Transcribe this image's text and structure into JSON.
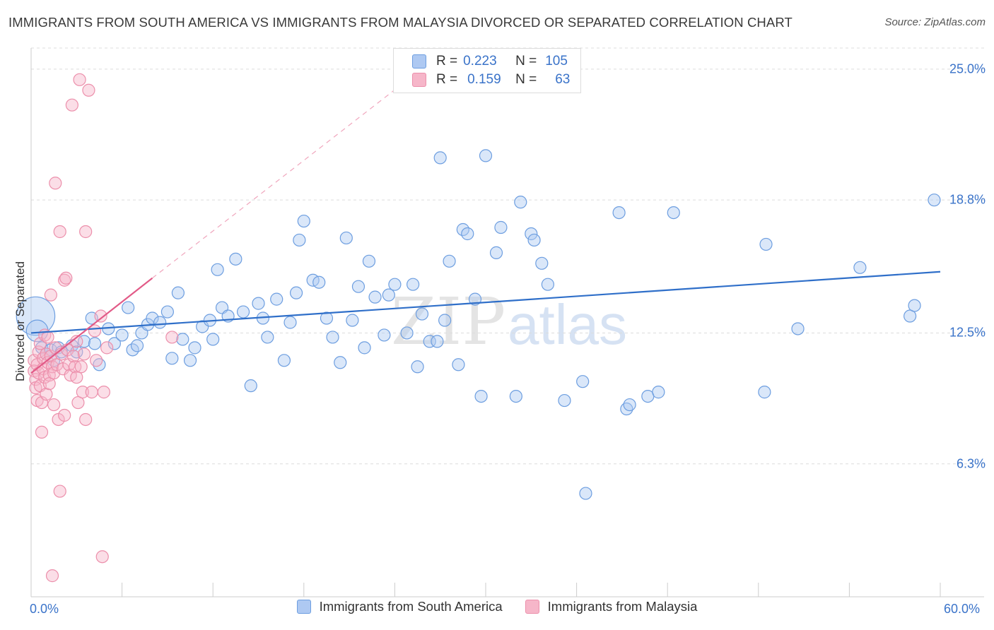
{
  "header": {
    "title": "IMMIGRANTS FROM SOUTH AMERICA VS IMMIGRANTS FROM MALAYSIA DIVORCED OR SEPARATED CORRELATION CHART",
    "source": "Source: ZipAtlas.com"
  },
  "legend": {
    "r_label": "R =",
    "n_label": "N =",
    "rows": [
      {
        "r": "0.223",
        "n": "105"
      },
      {
        "r": "0.159",
        "n": "63"
      }
    ]
  },
  "watermark": {
    "part1": "ZIP",
    "part2": "atlas"
  },
  "colors": {
    "blue_fill": "#aec9f2",
    "blue_stroke": "#6d9ee0",
    "blue_line": "#2f6fc9",
    "pink_fill": "#f6b6c9",
    "pink_stroke": "#ec8fab",
    "pink_line": "#e25a87",
    "grid": "#dcdcdc",
    "tick_text": "#3a73c9"
  },
  "chart_data": {
    "type": "scatter",
    "title": "IMMIGRANTS FROM SOUTH AMERICA VS IMMIGRANTS FROM MALAYSIA DIVORCED OR SEPARATED CORRELATION CHART",
    "xlabel": "",
    "ylabel": "Divorced or Separated",
    "xlim": [
      0,
      60
    ],
    "ylim": [
      0,
      26.0
    ],
    "y_ticks": [
      {
        "value": 6.3,
        "label": "6.3%"
      },
      {
        "value": 12.5,
        "label": "12.5%"
      },
      {
        "value": 18.8,
        "label": "18.8%"
      },
      {
        "value": 25.0,
        "label": "25.0%"
      }
    ],
    "x_ticks": [
      {
        "value": 0,
        "label": "0.0%"
      },
      {
        "value": 60,
        "label": "60.0%"
      }
    ],
    "grid": true,
    "legend_position": "top-center",
    "series": [
      {
        "name": "Immigrants from South America",
        "color": "blue",
        "R": 0.223,
        "N": 105,
        "trend": {
          "x0": 0.0,
          "y0": 12.5,
          "x1": 60.0,
          "y1": 15.4
        },
        "points": [
          [
            0.3,
            13.3,
            3.2
          ],
          [
            0.4,
            12.6,
            1.8
          ],
          [
            0.7,
            11.8,
            1.0
          ],
          [
            1.0,
            11.5,
            1.0
          ],
          [
            1.3,
            11.7,
            1.0
          ],
          [
            1.5,
            11.2,
            1.0
          ],
          [
            1.8,
            11.8,
            1.0
          ],
          [
            2.0,
            11.6,
            1.0
          ],
          [
            2.7,
            11.9,
            1.0
          ],
          [
            3.0,
            11.6,
            1.0
          ],
          [
            3.5,
            12.1,
            1.0
          ],
          [
            4.0,
            13.2,
            1.0
          ],
          [
            4.2,
            12.0,
            1.0
          ],
          [
            4.5,
            11.0,
            1.0
          ],
          [
            5.1,
            12.7,
            1.0
          ],
          [
            5.5,
            12.0,
            1.0
          ],
          [
            6.0,
            12.4,
            1.0
          ],
          [
            6.4,
            13.7,
            1.0
          ],
          [
            6.7,
            11.7,
            1.0
          ],
          [
            7.0,
            11.9,
            1.0
          ],
          [
            7.3,
            12.5,
            1.0
          ],
          [
            7.7,
            12.9,
            1.0
          ],
          [
            8.0,
            13.2,
            1.0
          ],
          [
            8.5,
            13.0,
            1.0
          ],
          [
            9.0,
            13.5,
            1.0
          ],
          [
            9.3,
            11.3,
            1.0
          ],
          [
            9.7,
            14.4,
            1.0
          ],
          [
            10.0,
            12.2,
            1.0
          ],
          [
            10.5,
            11.2,
            1.0
          ],
          [
            10.8,
            11.8,
            1.0
          ],
          [
            11.3,
            12.8,
            1.0
          ],
          [
            11.8,
            13.1,
            1.0
          ],
          [
            12.3,
            15.5,
            1.0
          ],
          [
            12.6,
            13.7,
            1.0
          ],
          [
            13.0,
            13.3,
            1.0
          ],
          [
            13.5,
            16.0,
            1.0
          ],
          [
            14.0,
            13.5,
            1.0
          ],
          [
            14.5,
            10.0,
            1.0
          ],
          [
            15.0,
            13.9,
            1.0
          ],
          [
            15.3,
            13.2,
            1.0
          ],
          [
            15.6,
            12.3,
            1.0
          ],
          [
            16.2,
            14.1,
            1.0
          ],
          [
            16.7,
            11.2,
            1.0
          ],
          [
            17.1,
            13.0,
            1.0
          ],
          [
            17.5,
            14.4,
            1.0
          ],
          [
            17.7,
            16.9,
            1.0
          ],
          [
            18.0,
            17.8,
            1.0
          ],
          [
            18.6,
            15.0,
            1.0
          ],
          [
            19.0,
            14.9,
            1.0
          ],
          [
            19.5,
            13.2,
            1.0
          ],
          [
            19.9,
            12.3,
            1.0
          ],
          [
            20.4,
            11.1,
            1.0
          ],
          [
            20.8,
            17.0,
            1.0
          ],
          [
            21.2,
            13.1,
            1.0
          ],
          [
            21.6,
            14.7,
            1.0
          ],
          [
            22.0,
            11.8,
            1.0
          ],
          [
            22.3,
            15.9,
            1.0
          ],
          [
            22.7,
            14.2,
            1.0
          ],
          [
            23.3,
            12.4,
            1.0
          ],
          [
            23.6,
            14.3,
            1.0
          ],
          [
            24.0,
            14.8,
            1.0
          ],
          [
            24.8,
            12.5,
            1.0
          ],
          [
            25.2,
            14.8,
            1.0
          ],
          [
            25.5,
            10.9,
            1.0
          ],
          [
            25.8,
            13.4,
            1.0
          ],
          [
            26.3,
            12.1,
            1.0
          ],
          [
            26.8,
            12.1,
            1.0
          ],
          [
            27.0,
            20.8,
            1.0
          ],
          [
            27.3,
            13.1,
            1.0
          ],
          [
            27.6,
            15.9,
            1.0
          ],
          [
            28.2,
            11.0,
            1.0
          ],
          [
            28.5,
            17.4,
            1.0
          ],
          [
            28.8,
            17.2,
            1.0
          ],
          [
            29.3,
            14.1,
            1.0
          ],
          [
            29.7,
            9.5,
            1.0
          ],
          [
            30.0,
            20.9,
            1.0
          ],
          [
            30.7,
            16.3,
            1.0
          ],
          [
            31.0,
            17.5,
            1.0
          ],
          [
            32.0,
            9.5,
            1.0
          ],
          [
            32.3,
            18.7,
            1.0
          ],
          [
            33.0,
            17.2,
            1.0
          ],
          [
            33.2,
            16.9,
            1.0
          ],
          [
            33.7,
            15.8,
            1.0
          ],
          [
            34.1,
            14.8,
            1.0
          ],
          [
            35.2,
            9.3,
            1.0
          ],
          [
            36.4,
            10.2,
            1.0
          ],
          [
            36.6,
            4.9,
            1.0
          ],
          [
            38.8,
            18.2,
            1.0
          ],
          [
            39.3,
            8.9,
            1.0
          ],
          [
            39.5,
            9.1,
            1.0
          ],
          [
            40.7,
            9.5,
            1.0
          ],
          [
            41.4,
            9.7,
            1.0
          ],
          [
            42.4,
            18.2,
            1.0
          ],
          [
            48.4,
            9.7,
            1.0
          ],
          [
            48.5,
            16.7,
            1.0
          ],
          [
            50.6,
            12.7,
            1.0
          ],
          [
            54.7,
            15.6,
            1.0
          ],
          [
            58.0,
            13.3,
            1.0
          ],
          [
            58.3,
            13.8,
            1.0
          ],
          [
            59.6,
            18.8,
            1.0
          ],
          [
            12.0,
            12.2,
            1.0
          ]
        ]
      },
      {
        "name": "Immigrants from Malaysia",
        "color": "pink",
        "R": 0.159,
        "N": 63,
        "trend": {
          "x0": 0.0,
          "y0": 10.6,
          "x1": 8.0,
          "y1": 15.1
        },
        "trend_extension": {
          "x0": 8.0,
          "y0": 15.1,
          "x1": 24.5,
          "y1": 24.3
        },
        "points": [
          [
            0.2,
            11.2,
            1.0
          ],
          [
            0.2,
            10.7,
            1.0
          ],
          [
            0.3,
            10.3,
            1.0
          ],
          [
            0.3,
            9.9,
            1.0
          ],
          [
            0.4,
            11.0,
            1.0
          ],
          [
            0.4,
            9.3,
            1.0
          ],
          [
            0.5,
            11.6,
            1.0
          ],
          [
            0.5,
            10.6,
            1.0
          ],
          [
            0.6,
            12.0,
            1.0
          ],
          [
            0.6,
            10.0,
            1.0
          ],
          [
            0.7,
            9.2,
            1.0
          ],
          [
            0.7,
            7.8,
            1.0
          ],
          [
            0.8,
            11.3,
            1.0
          ],
          [
            0.8,
            10.8,
            1.0
          ],
          [
            0.9,
            12.4,
            1.0
          ],
          [
            0.9,
            10.4,
            1.0
          ],
          [
            1.0,
            11.5,
            1.0
          ],
          [
            1.0,
            9.6,
            1.0
          ],
          [
            1.1,
            12.3,
            1.0
          ],
          [
            1.1,
            11.1,
            1.0
          ],
          [
            1.2,
            10.5,
            1.0
          ],
          [
            1.2,
            10.1,
            1.0
          ],
          [
            1.3,
            14.3,
            1.0
          ],
          [
            1.3,
            11.4,
            1.0
          ],
          [
            1.4,
            10.9,
            1.0
          ],
          [
            1.4,
            1.0,
            1.0
          ],
          [
            1.5,
            10.6,
            1.0
          ],
          [
            1.5,
            9.1,
            1.0
          ],
          [
            1.6,
            19.6,
            1.0
          ],
          [
            1.6,
            11.8,
            1.0
          ],
          [
            1.7,
            11.0,
            1.0
          ],
          [
            1.8,
            8.4,
            1.0
          ],
          [
            1.9,
            17.3,
            1.0
          ],
          [
            1.9,
            5.0,
            1.0
          ],
          [
            2.0,
            11.5,
            1.0
          ],
          [
            2.1,
            10.8,
            1.0
          ],
          [
            2.2,
            15.0,
            1.0
          ],
          [
            2.2,
            8.6,
            1.0
          ],
          [
            2.3,
            15.1,
            1.0
          ],
          [
            2.4,
            11.7,
            1.0
          ],
          [
            2.5,
            11.0,
            1.0
          ],
          [
            2.6,
            10.5,
            1.0
          ],
          [
            2.7,
            23.3,
            1.0
          ],
          [
            2.8,
            11.4,
            1.0
          ],
          [
            2.9,
            10.9,
            1.0
          ],
          [
            3.0,
            10.4,
            1.0
          ],
          [
            3.0,
            12.1,
            1.0
          ],
          [
            3.1,
            9.2,
            1.0
          ],
          [
            3.2,
            24.5,
            1.0
          ],
          [
            3.3,
            10.9,
            1.0
          ],
          [
            3.4,
            9.7,
            1.0
          ],
          [
            3.5,
            11.5,
            1.0
          ],
          [
            3.6,
            17.3,
            1.0
          ],
          [
            3.6,
            8.4,
            1.0
          ],
          [
            3.8,
            24.0,
            1.0
          ],
          [
            4.0,
            9.7,
            1.0
          ],
          [
            4.2,
            12.6,
            1.0
          ],
          [
            4.3,
            11.2,
            1.0
          ],
          [
            4.6,
            13.3,
            1.0
          ],
          [
            4.7,
            1.9,
            1.0
          ],
          [
            4.8,
            9.7,
            1.0
          ],
          [
            5.0,
            11.8,
            1.0
          ],
          [
            9.3,
            12.3,
            1.0
          ]
        ]
      }
    ]
  }
}
